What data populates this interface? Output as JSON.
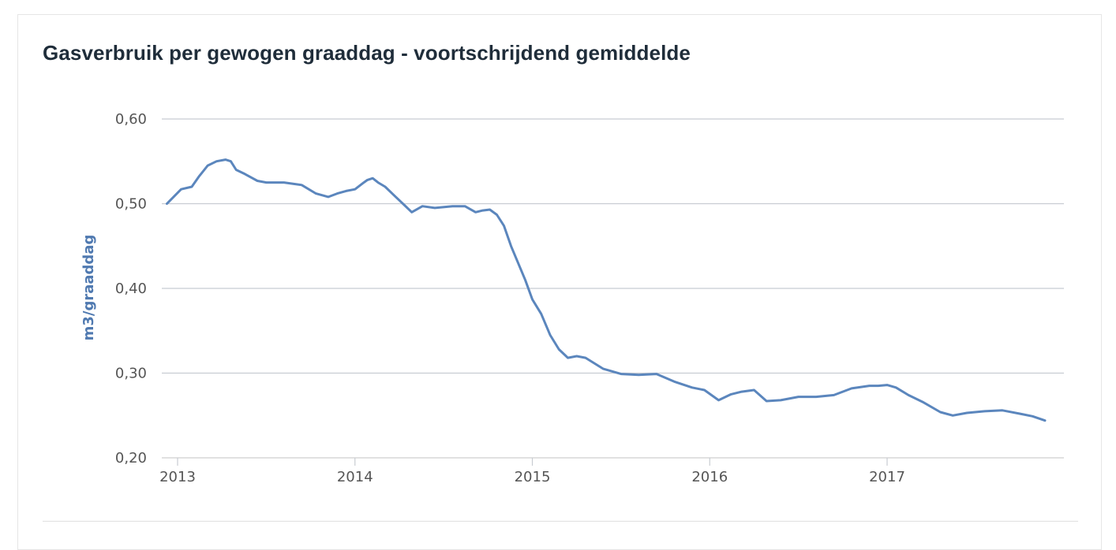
{
  "chart_data": {
    "type": "line",
    "title": "Gasverbruik per gewogen graaddag - voortschrijdend gemiddelde",
    "xlabel": "",
    "ylabel": "m3/graaddag",
    "xlim": [
      2012.94,
      2017.89
    ],
    "ylim": [
      0.2,
      0.6
    ],
    "y_ticks": [
      "0,20",
      "0,30",
      "0,40",
      "0,50",
      "0,60"
    ],
    "y_tick_values": [
      0.2,
      0.3,
      0.4,
      0.5,
      0.6
    ],
    "x_ticks": [
      "2013",
      "2014",
      "2015",
      "2016",
      "2017"
    ],
    "x_tick_values": [
      2013,
      2014,
      2015,
      2016,
      2017
    ],
    "grid": true,
    "legend": "none",
    "line_color": "#5b86bd",
    "series": [
      {
        "x": [
          2012.94,
          2013.02,
          2013.08,
          2013.12,
          2013.17,
          2013.22,
          2013.27,
          2013.3,
          2013.33,
          2013.38,
          2013.45,
          2013.5,
          2013.6,
          2013.7,
          2013.78,
          2013.85,
          2013.9,
          2013.95,
          2014.0,
          2014.05,
          2014.07,
          2014.1,
          2014.13,
          2014.17,
          2014.22,
          2014.28,
          2014.32,
          2014.38,
          2014.45,
          2014.55,
          2014.62,
          2014.68,
          2014.72,
          2014.76,
          2014.8,
          2014.84,
          2014.88,
          2014.92,
          2014.96,
          2015.0,
          2015.05,
          2015.1,
          2015.15,
          2015.2,
          2015.25,
          2015.3,
          2015.4,
          2015.5,
          2015.6,
          2015.7,
          2015.8,
          2015.9,
          2015.97,
          2016.05,
          2016.12,
          2016.18,
          2016.25,
          2016.32,
          2016.4,
          2016.5,
          2016.6,
          2016.7,
          2016.8,
          2016.9,
          2016.95,
          2017.0,
          2017.05,
          2017.12,
          2017.2,
          2017.3,
          2017.37,
          2017.45,
          2017.55,
          2017.65,
          2017.75,
          2017.82,
          2017.89
        ],
        "values": [
          0.5,
          0.517,
          0.52,
          0.532,
          0.545,
          0.55,
          0.552,
          0.55,
          0.54,
          0.535,
          0.527,
          0.525,
          0.525,
          0.522,
          0.512,
          0.508,
          0.512,
          0.515,
          0.517,
          0.525,
          0.528,
          0.53,
          0.525,
          0.52,
          0.51,
          0.498,
          0.49,
          0.497,
          0.495,
          0.497,
          0.497,
          0.49,
          0.492,
          0.493,
          0.487,
          0.474,
          0.45,
          0.43,
          0.41,
          0.387,
          0.37,
          0.345,
          0.328,
          0.318,
          0.32,
          0.318,
          0.305,
          0.299,
          0.298,
          0.299,
          0.29,
          0.283,
          0.28,
          0.268,
          0.275,
          0.278,
          0.28,
          0.267,
          0.268,
          0.272,
          0.272,
          0.274,
          0.282,
          0.285,
          0.285,
          0.286,
          0.283,
          0.274,
          0.266,
          0.254,
          0.25,
          0.253,
          0.255,
          0.256,
          0.252,
          0.249,
          0.244
        ]
      }
    ]
  }
}
